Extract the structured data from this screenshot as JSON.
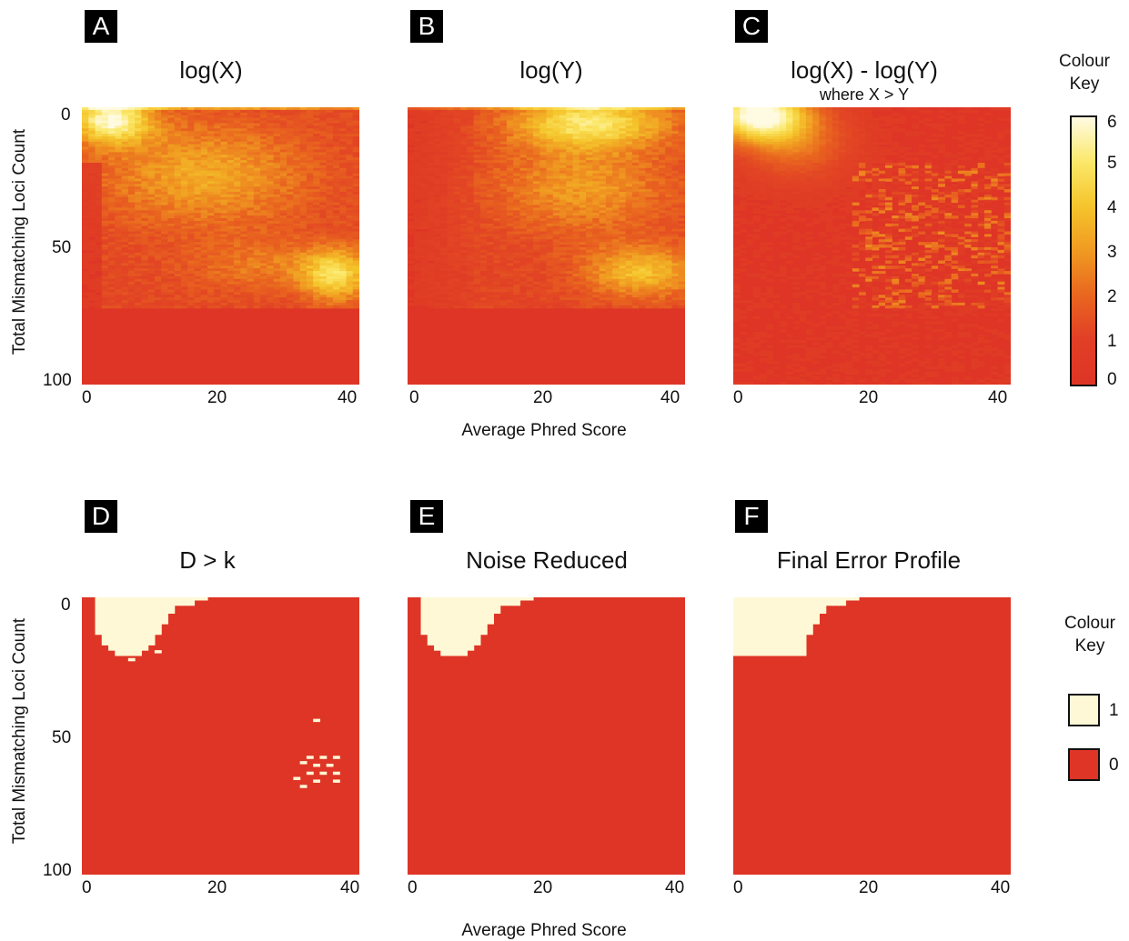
{
  "figure": {
    "shared_x_label": "Average Phred Score",
    "shared_y_label": "Total Mismatching Loci Count"
  },
  "continuous_key": {
    "title_line1": "Colour",
    "title_line2": "Key",
    "ticks": [
      "6",
      "5",
      "4",
      "3",
      "2",
      "1",
      "0"
    ],
    "colors": [
      "#fffbe2",
      "#fbe768",
      "#f5c52c",
      "#f09a21",
      "#e9651f",
      "#e13f26",
      "#de3526"
    ]
  },
  "binary_key": {
    "title_line1": "Colour",
    "title_line2": "Key",
    "items": [
      {
        "label": "1",
        "color": "#fff8d6"
      },
      {
        "label": "0",
        "color": "#de3526"
      }
    ]
  },
  "chart_data": [
    {
      "type": "heatmap",
      "panel": "A",
      "title": "log(X)",
      "subtitle": "",
      "xlabel": "Average Phred Score",
      "ylabel": "Total Mismatching Loci Count",
      "xlim": [
        0,
        42
      ],
      "ylim": [
        0,
        105
      ],
      "xticks": [
        "0",
        "20",
        "40"
      ],
      "yticks": [
        "0",
        "50",
        "100"
      ],
      "value_range": [
        0,
        6
      ],
      "pattern": "high values at low phred / low mismatch (top-left), and at phred 36-40 / mismatch 55-75"
    },
    {
      "type": "heatmap",
      "panel": "B",
      "title": "log(Y)",
      "subtitle": "",
      "xlabel": "Average Phred Score",
      "ylabel": "Total Mismatching Loci Count",
      "xlim": [
        0,
        42
      ],
      "ylim": [
        0,
        105
      ],
      "xticks": [
        "0",
        "20",
        "40"
      ],
      "yticks": [
        "0",
        "50",
        "100"
      ],
      "value_range": [
        0,
        6
      ],
      "pattern": "high values at phred 15-40 near mismatch 0-15 and at phred 30-40 / mismatch 55-75"
    },
    {
      "type": "heatmap",
      "panel": "C",
      "title": "log(X) - log(Y)",
      "subtitle": "where X > Y",
      "xlabel": "Average Phred Score",
      "ylabel": "Total Mismatching Loci Count",
      "xlim": [
        0,
        42
      ],
      "ylim": [
        0,
        105
      ],
      "xticks": [
        "0",
        "20",
        "40"
      ],
      "yticks": [
        "0",
        "50",
        "100"
      ],
      "value_range": [
        0,
        6
      ],
      "pattern": "strong values in top-left (phred 0-17, mismatch 0-30), sparse weak speckle elsewhere"
    },
    {
      "type": "heatmap",
      "panel": "D",
      "title": "D > k",
      "subtitle": "",
      "xlabel": "Average Phred Score",
      "ylabel": "Total Mismatching Loci Count",
      "xlim": [
        0,
        42
      ],
      "ylim": [
        0,
        105
      ],
      "xticks": [
        "0",
        "20",
        "40"
      ],
      "yticks": [
        "0",
        "50",
        "100"
      ],
      "value_range": [
        0,
        1
      ],
      "pattern": "binary: 1 in top-left region plus scattered cells near phred 33-38 / mismatch 45-72"
    },
    {
      "type": "heatmap",
      "panel": "E",
      "title": "Noise Reduced",
      "subtitle": "",
      "xlabel": "Average Phred Score",
      "ylabel": "Total Mismatching Loci Count",
      "xlim": [
        0,
        42
      ],
      "ylim": [
        0,
        105
      ],
      "xticks": [
        "0",
        "20",
        "40"
      ],
      "yticks": [
        "0",
        "50",
        "100"
      ],
      "value_range": [
        0,
        1
      ],
      "pattern": "binary: 1 only in top-left region (phred 2-18, mismatch 0-22)"
    },
    {
      "type": "heatmap",
      "panel": "F",
      "title": "Final Error Profile",
      "subtitle": "",
      "xlabel": "Average Phred Score",
      "ylabel": "Total Mismatching Loci Count",
      "xlim": [
        0,
        42
      ],
      "ylim": [
        0,
        105
      ],
      "xticks": [
        "0",
        "20",
        "40"
      ],
      "yticks": [
        "0",
        "50",
        "100"
      ],
      "value_range": [
        0,
        1
      ],
      "pattern": "binary: 1 in top-left region (phred 0-18, mismatch 0-22)"
    }
  ]
}
